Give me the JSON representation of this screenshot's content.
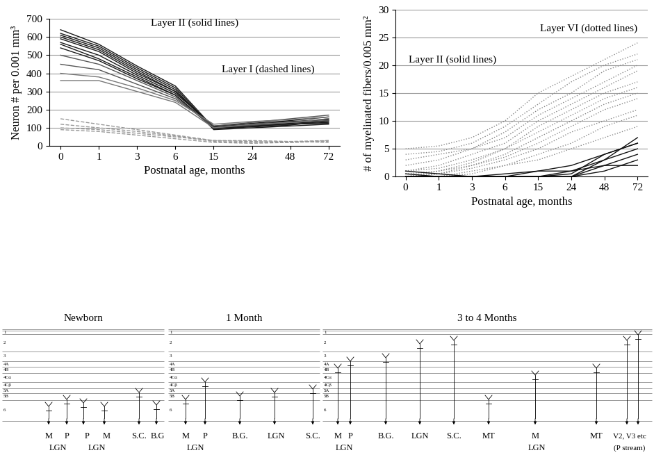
{
  "chart_data": [
    {
      "type": "line",
      "categories": [
        "0",
        "1",
        "3",
        "6",
        "15",
        "24",
        "48",
        "72"
      ],
      "xlabel": "Postnatal age, months",
      "ylabel": "Neuron # per 0.001 mm³",
      "ylim": [
        0,
        700
      ],
      "yticks": [
        0,
        100,
        200,
        300,
        400,
        500,
        600,
        700
      ],
      "grid": true,
      "annotations": [
        {
          "text": "Layer II (solid lines)"
        },
        {
          "text": "Layer I (dashed lines)"
        }
      ],
      "series": [
        {
          "color": "#1a1a1a",
          "line_style": "solid",
          "values": [
            640,
            560,
            440,
            330,
            100,
            110,
            120,
            130
          ]
        },
        {
          "color": "#1a1a1a",
          "line_style": "solid",
          "values": [
            620,
            550,
            430,
            320,
            95,
            105,
            115,
            140
          ]
        },
        {
          "color": "#1a1a1a",
          "line_style": "solid",
          "values": [
            610,
            540,
            420,
            310,
            90,
            100,
            110,
            120
          ]
        },
        {
          "color": "#1a1a1a",
          "line_style": "solid",
          "values": [
            600,
            530,
            410,
            300,
            100,
            115,
            125,
            135
          ]
        },
        {
          "color": "#1a1a1a",
          "line_style": "solid",
          "values": [
            590,
            520,
            400,
            300,
            105,
            120,
            130,
            150
          ]
        },
        {
          "color": "#1a1a1a",
          "line_style": "solid",
          "values": [
            570,
            500,
            390,
            290,
            110,
            125,
            140,
            160
          ]
        },
        {
          "color": "#1a1a1a",
          "line_style": "solid",
          "values": [
            560,
            480,
            380,
            280,
            100,
            120,
            135,
            145
          ]
        },
        {
          "color": "#1a1a1a",
          "line_style": "solid",
          "values": [
            540,
            470,
            370,
            280,
            95,
            110,
            120,
            125
          ]
        },
        {
          "color": "#555555",
          "line_style": "solid",
          "values": [
            500,
            450,
            360,
            270,
            100,
            115,
            130,
            140
          ]
        },
        {
          "color": "#555555",
          "line_style": "solid",
          "values": [
            450,
            420,
            340,
            260,
            110,
            130,
            150,
            170
          ]
        },
        {
          "color": "#777777",
          "line_style": "solid",
          "values": [
            400,
            380,
            320,
            250,
            120,
            135,
            145,
            160
          ]
        },
        {
          "color": "#777777",
          "line_style": "solid",
          "values": [
            360,
            360,
            300,
            240,
            100,
            120,
            130,
            150
          ]
        },
        {
          "color": "#999999",
          "line_style": "dashed",
          "values": [
            150,
            120,
            90,
            60,
            30,
            30,
            25,
            30
          ]
        },
        {
          "color": "#999999",
          "line_style": "dashed",
          "values": [
            120,
            100,
            80,
            55,
            25,
            20,
            25,
            20
          ]
        },
        {
          "color": "#999999",
          "line_style": "dashed",
          "values": [
            100,
            90,
            70,
            50,
            30,
            25,
            20,
            30
          ]
        },
        {
          "color": "#999999",
          "line_style": "dashed",
          "values": [
            90,
            80,
            60,
            40,
            20,
            15,
            20,
            25
          ]
        }
      ]
    },
    {
      "type": "line",
      "categories": [
        "0",
        "1",
        "3",
        "6",
        "15",
        "24",
        "48",
        "72"
      ],
      "xlabel": "Postnatal age, months",
      "ylabel": "# of myelinated fibers/0.005 mm²",
      "ylim": [
        0,
        30
      ],
      "yticks": [
        0,
        5,
        10,
        15,
        20,
        25,
        30
      ],
      "grid": true,
      "annotations": [
        {
          "text": "Layer VI (dotted lines)"
        },
        {
          "text": "Layer II (solid lines)"
        }
      ],
      "series": [
        {
          "color": "#888888",
          "line_style": "dotted",
          "values": [
            5,
            5.5,
            7,
            10,
            15,
            18,
            21,
            24
          ]
        },
        {
          "color": "#888888",
          "line_style": "dotted",
          "values": [
            4,
            4.5,
            6,
            9,
            13,
            17,
            20,
            22
          ]
        },
        {
          "color": "#888888",
          "line_style": "dotted",
          "values": [
            3,
            4,
            5,
            8,
            12,
            15,
            19,
            21
          ]
        },
        {
          "color": "#888888",
          "line_style": "dotted",
          "values": [
            2,
            3,
            5,
            7,
            11,
            14,
            17,
            20
          ]
        },
        {
          "color": "#888888",
          "line_style": "dotted",
          "values": [
            1,
            2,
            4,
            6,
            10,
            13,
            16,
            19
          ]
        },
        {
          "color": "#888888",
          "line_style": "dotted",
          "values": [
            1,
            1.5,
            3,
            5,
            9,
            12,
            15,
            17
          ]
        },
        {
          "color": "#888888",
          "line_style": "dotted",
          "values": [
            0.5,
            1,
            2.5,
            5,
            8,
            11,
            14,
            16
          ]
        },
        {
          "color": "#888888",
          "line_style": "dotted",
          "values": [
            0,
            1,
            2,
            4,
            7,
            10,
            13,
            15
          ]
        },
        {
          "color": "#888888",
          "line_style": "dotted",
          "values": [
            0,
            0.5,
            2,
            3.5,
            6,
            9,
            12,
            14
          ]
        },
        {
          "color": "#888888",
          "line_style": "dotted",
          "values": [
            0,
            0.5,
            1.5,
            3,
            5,
            8,
            10,
            12
          ]
        },
        {
          "color": "#888888",
          "line_style": "dotted",
          "values": [
            0,
            0,
            1,
            2,
            4,
            6,
            9,
            11
          ]
        },
        {
          "color": "#888888",
          "line_style": "dotted",
          "values": [
            0,
            0,
            0.5,
            2,
            3,
            5,
            7,
            9
          ]
        },
        {
          "color": "#111111",
          "line_style": "solid",
          "values": [
            0,
            0,
            0,
            0,
            0,
            0,
            3,
            7
          ]
        },
        {
          "color": "#111111",
          "line_style": "solid",
          "values": [
            0,
            0,
            0,
            0,
            0,
            0.5,
            4,
            6
          ]
        },
        {
          "color": "#111111",
          "line_style": "solid",
          "values": [
            0,
            0,
            0,
            0,
            0,
            1,
            3,
            5
          ]
        },
        {
          "color": "#111111",
          "line_style": "solid",
          "values": [
            0,
            0,
            0,
            0.5,
            1,
            1,
            2,
            4
          ]
        },
        {
          "color": "#111111",
          "line_style": "solid",
          "values": [
            1,
            0.5,
            0,
            0,
            0,
            0,
            1,
            3
          ]
        },
        {
          "color": "#111111",
          "line_style": "solid",
          "values": [
            0,
            0,
            0,
            0,
            0,
            0,
            2,
            2
          ]
        },
        {
          "color": "#111111",
          "line_style": "solid",
          "values": [
            0.5,
            0,
            0,
            0,
            1,
            2,
            4,
            6
          ]
        }
      ]
    }
  ],
  "diagram": {
    "layers": [
      "1",
      "2",
      "3",
      "4A",
      "4B",
      "4Cα",
      "4Cβ",
      "5A",
      "5B",
      "6"
    ],
    "panels": [
      {
        "title": "Newborn",
        "groups": [
          {
            "top": [
              "M",
              "P"
            ],
            "bottom": "LGN"
          },
          {
            "top": [
              "P",
              "M"
            ],
            "bottom": "LGN"
          },
          {
            "top": [
              "S.C."
            ]
          },
          {
            "top": [
              "B.G"
            ]
          }
        ]
      },
      {
        "title": "1 Month",
        "groups": [
          {
            "top": [
              "M",
              "P"
            ],
            "bottom": "LGN"
          },
          {
            "top": [
              "B.G."
            ]
          },
          {
            "top": [
              "LGN"
            ]
          },
          {
            "top": [
              "S.C."
            ]
          }
        ]
      },
      {
        "title": "3 to 4 Months",
        "groups": [
          {
            "top": [
              "M",
              "P"
            ],
            "bottom": "LGN"
          },
          {
            "top": [
              "B.G."
            ]
          },
          {
            "top": [
              "LGN"
            ]
          },
          {
            "top": [
              "S.C."
            ]
          },
          {
            "top": [
              "MT"
            ]
          },
          {
            "top": [
              "M"
            ],
            "bottom": "LGN"
          },
          {
            "top": [
              "MT"
            ]
          },
          {
            "top": [
              "V2, V3 etc"
            ],
            "bottom": "(P stream)"
          }
        ]
      }
    ]
  }
}
